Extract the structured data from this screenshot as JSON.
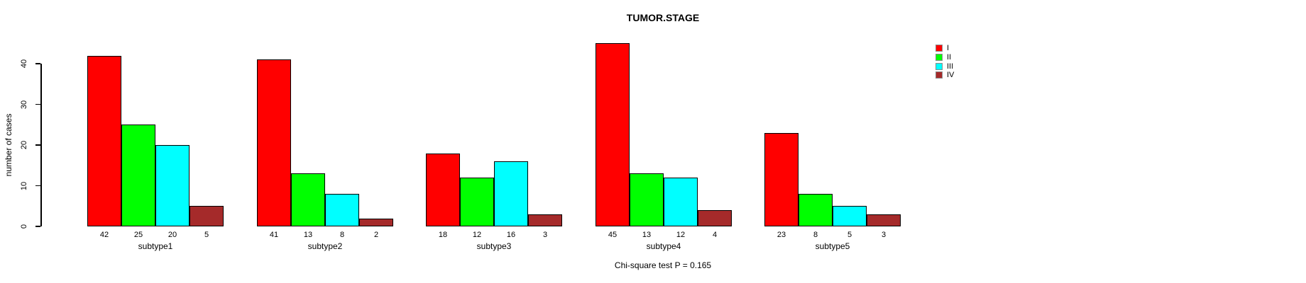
{
  "title": "TUMOR.STAGE",
  "footer": "Chi-square test P = 0.165",
  "axis": {
    "ylabel": "number of cases",
    "yticks": [
      0,
      10,
      20,
      30,
      40
    ]
  },
  "colors": {
    "bar_border": "#000000",
    "stage_I": "#FF0000",
    "stage_II": "#00FF00",
    "stage_III": "#00FFFF",
    "stage_IV": "#A52A2A"
  },
  "chart_data": {
    "type": "bar",
    "title": "TUMOR.STAGE",
    "xlabel": "",
    "ylabel": "number of cases",
    "ylim": [
      0,
      45
    ],
    "grid": false,
    "legend_position": "top-right",
    "annotation": "Chi-square test P = 0.165",
    "bar_value_labels": true,
    "categories": [
      "subtype1",
      "subtype2",
      "subtype3",
      "subtype4",
      "subtype5"
    ],
    "series": [
      {
        "name": "I",
        "color": "#FF0000",
        "values": [
          42,
          41,
          18,
          45,
          23
        ]
      },
      {
        "name": "II",
        "color": "#00FF00",
        "values": [
          25,
          13,
          12,
          13,
          8
        ]
      },
      {
        "name": "III",
        "color": "#00FFFF",
        "values": [
          20,
          8,
          16,
          12,
          5
        ]
      },
      {
        "name": "IV",
        "color": "#A52A2A",
        "values": [
          5,
          2,
          3,
          4,
          3
        ]
      }
    ]
  }
}
